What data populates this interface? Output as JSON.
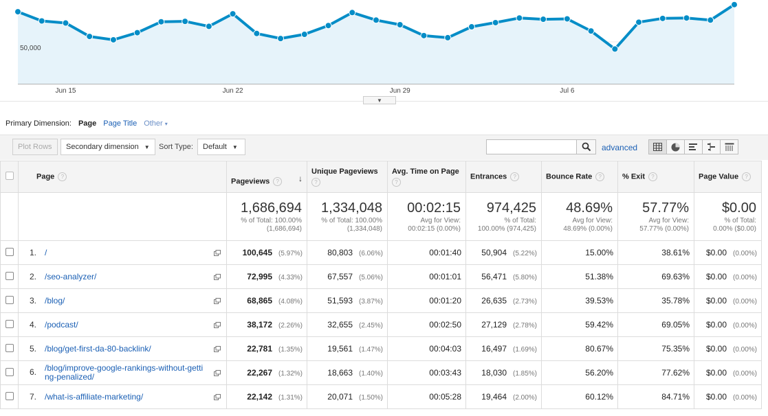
{
  "chart": {
    "y_label": "50,000",
    "x_labels": [
      "Jun 15",
      "Jun 22",
      "Jun 29",
      "Jul 6"
    ],
    "toggle_icon": "caret-down-icon",
    "color_line": "#058dc7",
    "color_fill": "#e6f3fa",
    "values": [
      57200,
      55000,
      54500,
      51300,
      50500,
      52200,
      54800,
      54900,
      53700,
      56700,
      52000,
      50800,
      51800,
      53900,
      57000,
      55200,
      54100,
      51500,
      51000,
      53600,
      54600,
      55700,
      55400,
      55500,
      52600,
      48300,
      54700,
      55600,
      55700,
      55200,
      58900
    ],
    "ylim": [
      40000,
      60000
    ]
  },
  "dimension": {
    "label": "Primary Dimension:",
    "active": "Page",
    "options": [
      "Page Title",
      "Other"
    ]
  },
  "toolbar": {
    "plot_rows": "Plot Rows",
    "secondary_dimension": "Secondary dimension",
    "sort_type_label": "Sort Type:",
    "sort_type_value": "Default",
    "search_value": "",
    "advanced": "advanced",
    "views": [
      "table-view-icon",
      "pie-view-icon",
      "performance-view-icon",
      "comparison-view-icon",
      "pivot-view-icon"
    ]
  },
  "columns": {
    "page": "Page",
    "pageviews": "Pageviews",
    "unique_pageviews": "Unique Pageviews",
    "avg_time": "Avg. Time on Page",
    "entrances": "Entrances",
    "bounce_rate": "Bounce Rate",
    "exit": "% Exit",
    "page_value": "Page Value"
  },
  "totals": {
    "pageviews": {
      "big": "1,686,694",
      "sub1": "% of Total: 100.00%",
      "sub2": "(1,686,694)"
    },
    "unique_pageviews": {
      "big": "1,334,048",
      "sub1": "% of Total: 100.00%",
      "sub2": "(1,334,048)"
    },
    "avg_time": {
      "big": "00:02:15",
      "sub1": "Avg for View:",
      "sub2": "00:02:15 (0.00%)"
    },
    "entrances": {
      "big": "974,425",
      "sub1": "% of Total:",
      "sub2": "100.00% (974,425)"
    },
    "bounce_rate": {
      "big": "48.69%",
      "sub1": "Avg for View:",
      "sub2": "48.69% (0.00%)"
    },
    "exit": {
      "big": "57.77%",
      "sub1": "Avg for View:",
      "sub2": "57.77% (0.00%)"
    },
    "page_value": {
      "big": "$0.00",
      "sub1": "% of Total:",
      "sub2": "0.00% ($0.00)"
    }
  },
  "rows": [
    {
      "idx": "1.",
      "page": "/",
      "pv": "100,645",
      "pv_pct": "(5.97%)",
      "upv": "80,803",
      "upv_pct": "(6.06%)",
      "time": "00:01:40",
      "ent": "50,904",
      "ent_pct": "(5.22%)",
      "bounce": "15.00%",
      "exit": "38.61%",
      "value": "$0.00",
      "value_pct": "(0.00%)"
    },
    {
      "idx": "2.",
      "page": "/seo-analyzer/",
      "pv": "72,995",
      "pv_pct": "(4.33%)",
      "upv": "67,557",
      "upv_pct": "(5.06%)",
      "time": "00:01:01",
      "ent": "56,471",
      "ent_pct": "(5.80%)",
      "bounce": "51.38%",
      "exit": "69.63%",
      "value": "$0.00",
      "value_pct": "(0.00%)"
    },
    {
      "idx": "3.",
      "page": "/blog/",
      "pv": "68,865",
      "pv_pct": "(4.08%)",
      "upv": "51,593",
      "upv_pct": "(3.87%)",
      "time": "00:01:20",
      "ent": "26,635",
      "ent_pct": "(2.73%)",
      "bounce": "39.53%",
      "exit": "35.78%",
      "value": "$0.00",
      "value_pct": "(0.00%)"
    },
    {
      "idx": "4.",
      "page": "/podcast/",
      "pv": "38,172",
      "pv_pct": "(2.26%)",
      "upv": "32,655",
      "upv_pct": "(2.45%)",
      "time": "00:02:50",
      "ent": "27,129",
      "ent_pct": "(2.78%)",
      "bounce": "59.42%",
      "exit": "69.05%",
      "value": "$0.00",
      "value_pct": "(0.00%)"
    },
    {
      "idx": "5.",
      "page": "/blog/get-first-da-80-backlink/",
      "pv": "22,781",
      "pv_pct": "(1.35%)",
      "upv": "19,561",
      "upv_pct": "(1.47%)",
      "time": "00:04:03",
      "ent": "16,497",
      "ent_pct": "(1.69%)",
      "bounce": "80.67%",
      "exit": "75.35%",
      "value": "$0.00",
      "value_pct": "(0.00%)"
    },
    {
      "idx": "6.",
      "page": "/blog/improve-google-rankings-without-getting-penalized/",
      "pv": "22,267",
      "pv_pct": "(1.32%)",
      "upv": "18,663",
      "upv_pct": "(1.40%)",
      "time": "00:03:43",
      "ent": "18,030",
      "ent_pct": "(1.85%)",
      "bounce": "56.20%",
      "exit": "77.62%",
      "value": "$0.00",
      "value_pct": "(0.00%)"
    },
    {
      "idx": "7.",
      "page": "/what-is-affiliate-marketing/",
      "pv": "22,142",
      "pv_pct": "(1.31%)",
      "upv": "20,071",
      "upv_pct": "(1.50%)",
      "time": "00:05:28",
      "ent": "19,464",
      "ent_pct": "(2.00%)",
      "bounce": "60.12%",
      "exit": "84.71%",
      "value": "$0.00",
      "value_pct": "(0.00%)"
    }
  ]
}
